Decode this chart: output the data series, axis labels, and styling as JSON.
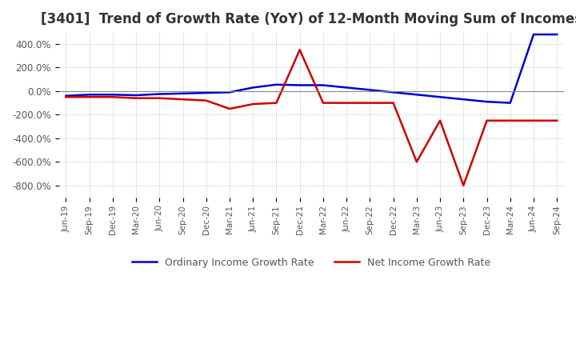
{
  "title": "[3401]  Trend of Growth Rate (YoY) of 12-Month Moving Sum of Incomes",
  "title_fontsize": 12,
  "ylim": [
    -900,
    500
  ],
  "yticks": [
    -800,
    -600,
    -400,
    -200,
    0,
    200,
    400
  ],
  "ytick_labels": [
    "-800.0%",
    "-600.0%",
    "-400.0%",
    "-200.0%",
    "0.0%",
    "200.0%",
    "400.0%"
  ],
  "line1_color": "#0000cc",
  "line2_color": "#cc0000",
  "line1_label": "Ordinary Income Growth Rate",
  "line2_label": "Net Income Growth Rate",
  "background_color": "#ffffff",
  "grid_color": "#aaaaaa",
  "x_labels": [
    "Jun-19",
    "Sep-19",
    "Dec-19",
    "Mar-20",
    "Jun-20",
    "Sep-20",
    "Dec-20",
    "Mar-21",
    "Jun-21",
    "Sep-21",
    "Dec-21",
    "Mar-22",
    "Jun-22",
    "Sep-22",
    "Dec-22",
    "Mar-23",
    "Jun-23",
    "Sep-23",
    "Dec-23",
    "Mar-24",
    "Jun-24",
    "Sep-24"
  ],
  "ordinary_income": [
    -40,
    -30,
    -30,
    -35,
    -25,
    -20,
    -15,
    -10,
    30,
    55,
    50,
    50,
    30,
    10,
    -10,
    -30,
    -50,
    -70,
    -90,
    -100,
    480,
    480
  ],
  "net_income": [
    -50,
    -50,
    -50,
    -60,
    -60,
    -70,
    -80,
    -150,
    -110,
    -100,
    350,
    -100,
    -100,
    -100,
    -100,
    -600,
    -250,
    -800,
    -250,
    -250,
    -250,
    -250
  ]
}
